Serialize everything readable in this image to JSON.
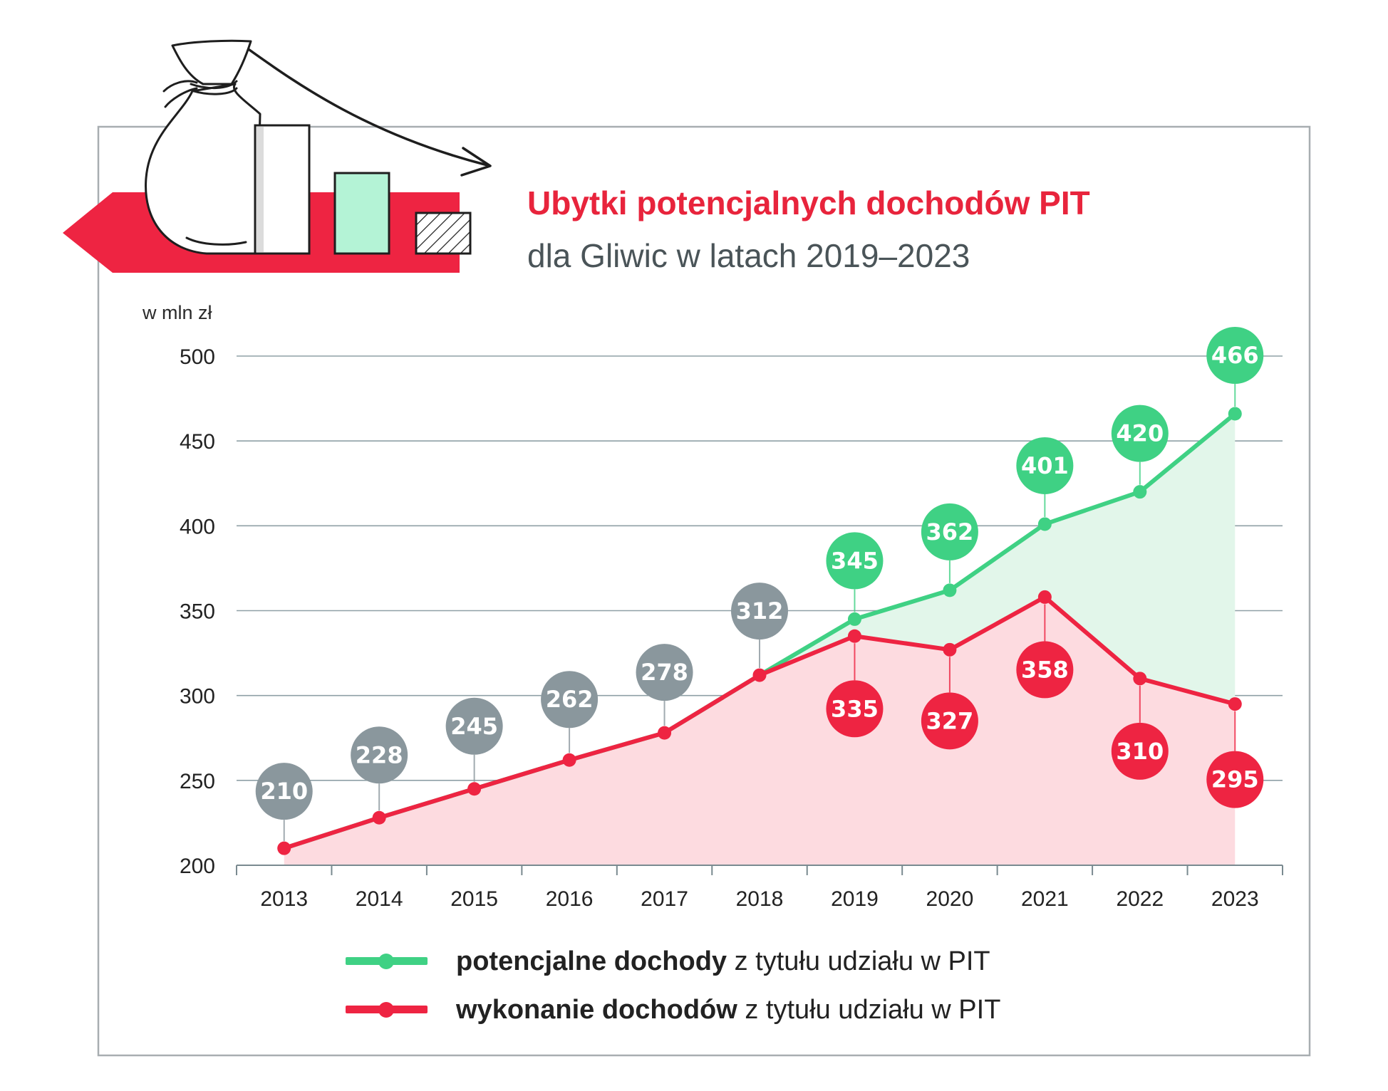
{
  "header": {
    "title": "Ubytki potencjalnych dochodów PIT",
    "subtitle": "dla Gliwic w latach 2019–2023"
  },
  "colors": {
    "green": "#3fd184",
    "red": "#ee2442",
    "gray": "#8a979d",
    "green_fill": "#e2f6ea",
    "red_fill": "#fddbe0",
    "title_red": "#e8243c",
    "banner_red": "#ee2442",
    "mint": "#b4f3d6"
  },
  "legend": {
    "green_bold": "potencjalne dochody",
    "green_rest": " z tytułu udziału w PIT",
    "red_bold": "wykonanie dochodów",
    "red_rest": " z tytułu udziału w PIT"
  },
  "chart_data": {
    "type": "line",
    "ylabel": "w mln zł",
    "ylim": [
      200,
      500
    ],
    "yticks": [
      200,
      250,
      300,
      350,
      400,
      450,
      500
    ],
    "categories": [
      "2013",
      "2014",
      "2015",
      "2016",
      "2017",
      "2018",
      "2019",
      "2020",
      "2021",
      "2022",
      "2023"
    ],
    "grid": true,
    "legend_position": "bottom",
    "series": [
      {
        "name": "potencjalne dochody z tytułu udziału w PIT",
        "color": "green",
        "values": [
          210,
          228,
          245,
          262,
          278,
          312,
          345,
          362,
          401,
          420,
          466
        ]
      },
      {
        "name": "wykonanie dochodów z tytułu udziału w PIT",
        "color": "red",
        "values": [
          210,
          228,
          245,
          262,
          278,
          312,
          335,
          327,
          358,
          310,
          295
        ]
      }
    ]
  }
}
